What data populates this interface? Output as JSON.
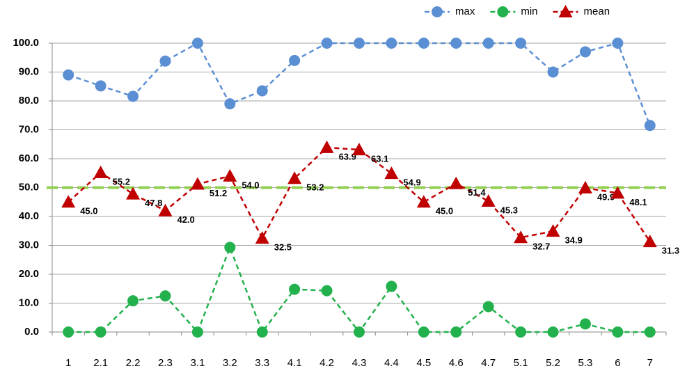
{
  "chart_data": {
    "type": "line",
    "categories": [
      "1",
      "2.1",
      "2.2",
      "2.3",
      "3.1",
      "3.2",
      "3.3",
      "4.1",
      "4.2",
      "4.3",
      "4.4",
      "4.5",
      "4.6",
      "4.7",
      "5.1",
      "5.2",
      "5.3",
      "6",
      "7"
    ],
    "series": [
      {
        "name": "max",
        "color": "#5b8fd4",
        "marker": "circle",
        "values": [
          89,
          85.2,
          81.6,
          93.8,
          100,
          79,
          83.5,
          94,
          100,
          100,
          100,
          100,
          100,
          100,
          100,
          90,
          97,
          100,
          71.5
        ]
      },
      {
        "name": "min",
        "color": "#22b14c",
        "marker": "circle",
        "values": [
          0,
          0,
          10.8,
          12.5,
          0,
          29.3,
          0,
          14.8,
          14.3,
          0,
          15.8,
          0,
          0,
          8.8,
          0,
          0,
          2.8,
          0,
          0
        ]
      },
      {
        "name": "mean",
        "color": "#c00000",
        "marker": "triangle",
        "values": [
          45,
          55.2,
          47.8,
          42,
          51.2,
          54,
          32.5,
          53.2,
          63.9,
          63.1,
          54.9,
          45,
          51.4,
          45.3,
          32.7,
          34.9,
          49.9,
          48.1,
          31.3
        ],
        "value_labels": [
          "45.0",
          "55.2",
          "47.8",
          "42.0",
          "51.2",
          "54.0",
          "32.5",
          "53.2",
          "63.9",
          "63.1",
          "54.9",
          "45.0",
          "51.4",
          "45.3",
          "32.7",
          "34.9",
          "49.9",
          "48.1",
          "31.3"
        ]
      }
    ],
    "reference_line": {
      "value": 50,
      "color": "#92d050"
    },
    "ylim": [
      0,
      100
    ],
    "yticks": [
      {
        "value": 0,
        "label": "0.0"
      },
      {
        "value": 10,
        "label": "10.0"
      },
      {
        "value": 20,
        "label": "20.0"
      },
      {
        "value": 30,
        "label": "30.0"
      },
      {
        "value": 40,
        "label": "40.0"
      },
      {
        "value": 50,
        "label": "50.0"
      },
      {
        "value": 60,
        "label": "60.0"
      },
      {
        "value": 70,
        "label": "70.0"
      },
      {
        "value": 80,
        "label": "80.0"
      },
      {
        "value": 90,
        "label": "90.0"
      },
      {
        "value": 100,
        "label": "100.0"
      }
    ],
    "grid": true,
    "legend": "top-right"
  }
}
